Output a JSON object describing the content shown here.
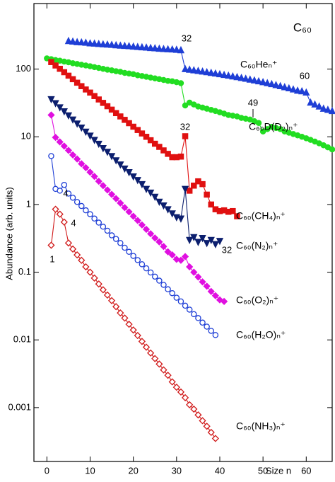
{
  "chart_data": {
    "type": "line",
    "title": "C₆₀",
    "y_label": "Abundance (arb. units)",
    "x_label": "Size n",
    "log_y": true,
    "xlim": [
      -3,
      66
    ],
    "xticks": [
      0,
      10,
      20,
      30,
      40,
      50,
      60
    ],
    "ylim": [
      0.00016,
      930
    ],
    "yticks": [
      0.001,
      0.01,
      0.1,
      1,
      10,
      100
    ],
    "annotations": [
      "32",
      "60",
      "49",
      "32",
      "32",
      "1",
      "4",
      "4"
    ],
    "series": [
      {
        "name": "C₆₀Heₙ⁺",
        "color": "#1f3fd6",
        "marker": "triangle-up",
        "filled": true,
        "x": [
          5,
          6,
          7,
          8,
          9,
          10,
          11,
          12,
          13,
          14,
          15,
          16,
          17,
          18,
          19,
          20,
          21,
          22,
          23,
          24,
          25,
          26,
          27,
          28,
          29,
          30,
          31,
          32,
          33,
          34,
          35,
          36,
          37,
          38,
          39,
          40,
          41,
          42,
          43,
          44,
          45,
          46,
          47,
          48,
          49,
          50,
          51,
          52,
          53,
          54,
          55,
          56,
          57,
          58,
          59,
          60,
          61,
          62,
          63,
          64,
          65,
          66
        ],
        "values": [
          260,
          255,
          250,
          248,
          245,
          240,
          238,
          235,
          232,
          230,
          228,
          225,
          222,
          220,
          218,
          215,
          212,
          210,
          208,
          205,
          203,
          200,
          198,
          196,
          195,
          193,
          190,
          100,
          98,
          96,
          94,
          92,
          90,
          88,
          86,
          84,
          82,
          80,
          78,
          76,
          74,
          72,
          70,
          68,
          66,
          64,
          62,
          60,
          58,
          56,
          54,
          52,
          50,
          48,
          47,
          45,
          32,
          30,
          28,
          26,
          25,
          24
        ]
      },
      {
        "name": "C₆₀D(D₂)ₙ⁺",
        "color": "#22dd22",
        "marker": "circle",
        "filled": true,
        "x": [
          0,
          1,
          2,
          3,
          4,
          5,
          6,
          7,
          8,
          9,
          10,
          11,
          12,
          13,
          14,
          15,
          16,
          17,
          18,
          19,
          20,
          21,
          22,
          23,
          24,
          25,
          26,
          27,
          28,
          29,
          30,
          31,
          32,
          33,
          34,
          35,
          36,
          37,
          38,
          39,
          40,
          41,
          42,
          43,
          44,
          45,
          46,
          47,
          48,
          49,
          50,
          51,
          52,
          53,
          54,
          55,
          56,
          57,
          58,
          59,
          60,
          61,
          62,
          63,
          64,
          65,
          66
        ],
        "values": [
          144,
          140,
          136,
          133,
          129,
          126,
          122,
          119,
          116,
          113,
          110,
          107,
          104,
          101,
          98,
          96,
          93,
          91,
          88,
          86,
          84,
          81,
          79,
          77,
          75,
          73,
          71,
          69,
          67,
          66,
          64,
          62,
          29,
          32,
          30,
          28,
          27,
          26,
          25,
          24,
          23,
          22,
          21,
          20.5,
          20,
          19,
          18.5,
          18,
          17,
          16,
          12,
          13,
          14,
          13.5,
          13,
          12,
          11.5,
          11,
          10.5,
          10,
          9.5,
          9,
          8.5,
          8,
          7.5,
          7,
          6.5
        ]
      },
      {
        "name": "C₆₀(CH₄)ₙ⁺",
        "color": "#e01010",
        "marker": "square",
        "filled": true,
        "x": [
          1,
          2,
          3,
          4,
          5,
          6,
          7,
          8,
          9,
          10,
          11,
          12,
          13,
          14,
          15,
          16,
          17,
          18,
          19,
          20,
          21,
          22,
          23,
          24,
          25,
          26,
          27,
          28,
          29,
          30,
          31,
          32,
          33,
          34,
          35,
          36,
          37,
          38,
          39,
          40,
          41,
          42,
          43,
          44
        ],
        "values": [
          127,
          113,
          101,
          90,
          80,
          71,
          63,
          56,
          50,
          45,
          40,
          35.6,
          31.7,
          28.3,
          25.2,
          22.4,
          20,
          17.8,
          15.9,
          14.1,
          12.6,
          11.2,
          10,
          8.9,
          7.9,
          7.1,
          6.3,
          5.6,
          5.0,
          5.0,
          5.1,
          10.2,
          1.6,
          1.9,
          2.2,
          2.0,
          1.4,
          1.0,
          0.85,
          0.8,
          0.82,
          0.78,
          0.8,
          0.67
        ]
      },
      {
        "name": "C₆₀(N₂)ₙ⁺",
        "color": "#0c1f6e",
        "marker": "triangle-down",
        "filled": true,
        "x": [
          1,
          2,
          3,
          4,
          5,
          6,
          7,
          8,
          9,
          10,
          11,
          12,
          13,
          14,
          15,
          16,
          17,
          18,
          19,
          20,
          21,
          22,
          23,
          24,
          25,
          26,
          27,
          28,
          29,
          30,
          31,
          32,
          33,
          34,
          35,
          36,
          37,
          38,
          39,
          40
        ],
        "values": [
          36,
          31.4,
          27.3,
          23.8,
          20.7,
          18,
          15.7,
          13.7,
          11.9,
          10.4,
          9.0,
          7.9,
          6.8,
          6.0,
          5.2,
          4.5,
          3.9,
          3.4,
          3.0,
          2.6,
          2.3,
          2.0,
          1.7,
          1.5,
          1.3,
          1.1,
          0.97,
          0.85,
          0.74,
          0.65,
          0.62,
          1.7,
          0.3,
          0.33,
          0.28,
          0.32,
          0.27,
          0.3,
          0.26,
          0.29
        ]
      },
      {
        "name": "C₆₀(O₂)ₙ⁺",
        "color": "#e010e0",
        "marker": "diamond",
        "filled": true,
        "x": [
          1,
          2,
          3,
          4,
          5,
          6,
          7,
          8,
          9,
          10,
          11,
          12,
          13,
          14,
          15,
          16,
          17,
          18,
          19,
          20,
          21,
          22,
          23,
          24,
          25,
          26,
          27,
          28,
          29,
          30,
          31,
          32,
          33,
          34,
          35,
          36,
          37,
          38,
          39,
          40,
          41
        ],
        "values": [
          21,
          9.8,
          8.4,
          7.3,
          6.3,
          5.4,
          4.7,
          4.0,
          3.5,
          3.0,
          2.6,
          2.2,
          1.9,
          1.64,
          1.41,
          1.22,
          1.05,
          0.9,
          0.78,
          0.67,
          0.58,
          0.5,
          0.43,
          0.37,
          0.32,
          0.28,
          0.24,
          0.2,
          0.18,
          0.155,
          0.15,
          0.17,
          0.12,
          0.1,
          0.085,
          0.072,
          0.062,
          0.052,
          0.045,
          0.039,
          0.037
        ]
      },
      {
        "name": "C₆₀(H₂O)ₙ⁺",
        "color": "#1f3fd6",
        "marker": "circle",
        "filled": false,
        "x": [
          1,
          2,
          3,
          4,
          5,
          6,
          7,
          8,
          9,
          10,
          11,
          12,
          13,
          14,
          15,
          16,
          17,
          18,
          19,
          20,
          21,
          22,
          23,
          24,
          25,
          26,
          27,
          28,
          29,
          30,
          31,
          32,
          33,
          34,
          35,
          36,
          37,
          38,
          39
        ],
        "values": [
          5.2,
          1.7,
          1.6,
          1.95,
          1.45,
          1.26,
          1.09,
          0.95,
          0.82,
          0.72,
          0.62,
          0.54,
          0.47,
          0.41,
          0.35,
          0.31,
          0.27,
          0.23,
          0.2,
          0.174,
          0.151,
          0.131,
          0.114,
          0.099,
          0.086,
          0.075,
          0.065,
          0.056,
          0.049,
          0.042,
          0.037,
          0.032,
          0.028,
          0.024,
          0.021,
          0.018,
          0.0157,
          0.0136,
          0.0118
        ]
      },
      {
        "name": "C₆₀(NH₃)ₙ⁺",
        "color": "#d01818",
        "marker": "diamond",
        "filled": false,
        "x": [
          1,
          2,
          3,
          4,
          5,
          6,
          7,
          8,
          9,
          10,
          11,
          12,
          13,
          14,
          15,
          16,
          17,
          18,
          19,
          20,
          21,
          22,
          23,
          24,
          25,
          26,
          27,
          28,
          29,
          30,
          31,
          32,
          33,
          34,
          35,
          36,
          37,
          38,
          39
        ],
        "values": [
          0.25,
          0.85,
          0.72,
          0.55,
          0.27,
          0.22,
          0.18,
          0.15,
          0.12,
          0.1,
          0.082,
          0.067,
          0.055,
          0.046,
          0.038,
          0.031,
          0.025,
          0.021,
          0.017,
          0.014,
          0.0116,
          0.0095,
          0.0078,
          0.0064,
          0.0053,
          0.0044,
          0.0036,
          0.003,
          0.0024,
          0.002,
          0.0017,
          0.0014,
          0.0011,
          0.00095,
          0.00078,
          0.00064,
          0.00053,
          0.00043,
          0.00035
        ]
      }
    ]
  }
}
